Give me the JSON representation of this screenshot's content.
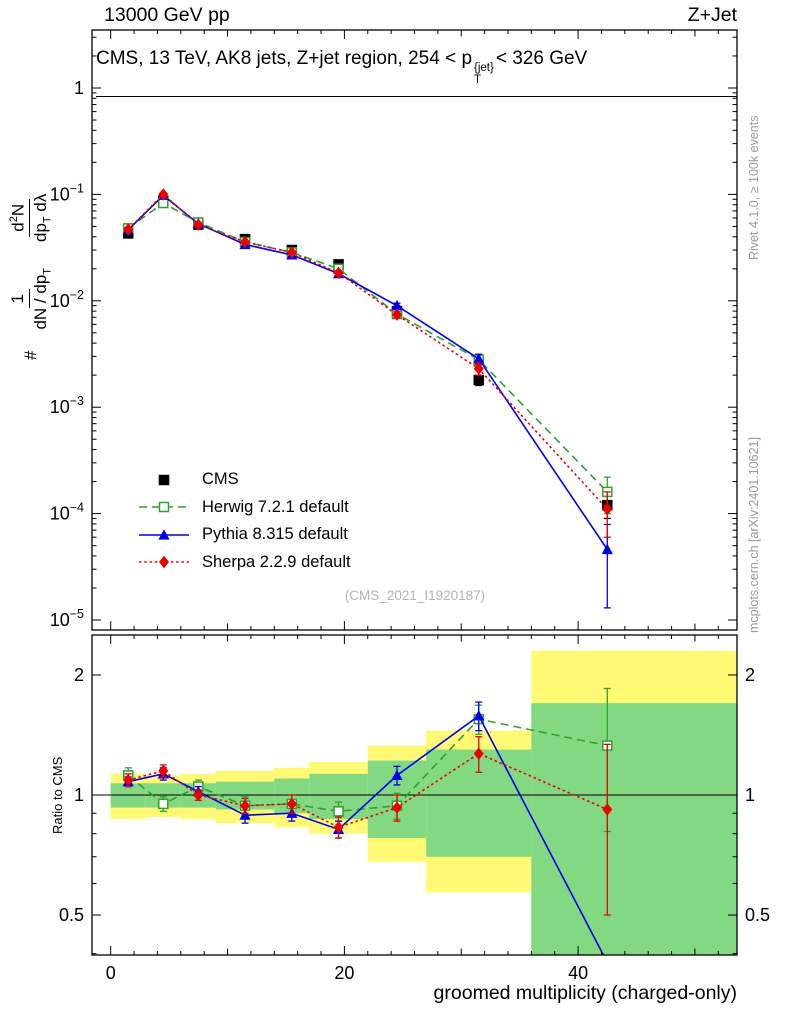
{
  "header": {
    "left": "13000 GeV pp",
    "right": "Z+Jet"
  },
  "title": {
    "full": "CMS, 13 TeV, AK8 jets, Z+jet region, 254 < pT{jet} < 326 GeV",
    "prefix": "CMS, 13 TeV, AK8 jets, Z+jet region, 254 < p",
    "sup": "{jet}",
    "sub": "T",
    "suffix": "< 326 GeV"
  },
  "ylabel": {
    "hash": "#",
    "f1_num": "1",
    "f1_den": "dN / dp",
    "f1_den_sub": "T",
    "f2_num": "d",
    "f2_num_sup": "2",
    "f2_num_tail": "N",
    "f2_den": "dp",
    "f2_den_sub": "T",
    "f2_den_tail": " dλ"
  },
  "ratio_label": "Ratio to CMS",
  "xlabel": "groomed multiplicity (charged-only)",
  "watermark": "(CMS_2021_I1920187)",
  "credits": {
    "right_top": "Rivet 4.1.0, ≥ 100k events",
    "right_bottom": "mcplots.cern.ch [arXiv:2401.10621]"
  },
  "chart_data": {
    "type": "line",
    "title": "CMS, 13 TeV, AK8 jets, Z+jet region, 254 < pT^{jet} < 326 GeV",
    "xlabel": "groomed multiplicity (charged-only)",
    "ylabel": "# 1/(dN/dpT) d2N/(dpT dλ)",
    "x_range": [
      -1.6,
      53.6
    ],
    "x_major_ticks": [
      0,
      20,
      40
    ],
    "x_minor_step": 2,
    "bin_edges": [
      0,
      3,
      6,
      9,
      14,
      17,
      22,
      27,
      36,
      49
    ],
    "x_centers": [
      1.5,
      4.5,
      7.5,
      11.5,
      15.5,
      19.5,
      24.5,
      31.5,
      42.5
    ],
    "y_main": {
      "scale": "log",
      "range": [
        8.1e-06,
        3.5
      ],
      "tick_decades": [
        0,
        -1,
        -2,
        -3,
        -4,
        -5
      ]
    },
    "y_ratio": {
      "scale": "log",
      "range": [
        0.397,
        2.52
      ],
      "major_ticks": [
        0.5,
        1,
        2
      ],
      "minor_ticks": [
        0.4,
        0.6,
        0.7,
        0.8,
        0.9
      ],
      "label": "Ratio to CMS"
    },
    "series": [
      {
        "id": "cms",
        "name": "CMS",
        "color": "#000000",
        "marker": "square",
        "fill": "filled",
        "line": "none",
        "y": [
          0.043,
          0.087,
          0.052,
          0.038,
          0.03,
          0.022,
          0.008,
          0.0018,
          0.00012
        ],
        "yerr": [
          0.004,
          0.006,
          0.004,
          0.003,
          0.0025,
          0.002,
          0.0009,
          0.0002,
          3e-05
        ],
        "ratio": null,
        "ratio_err": null
      },
      {
        "id": "herwig",
        "name": "Herwig 7.2.1 default",
        "color": "#2fa12f",
        "marker": "square",
        "fill": "open",
        "line": "dashed",
        "y": [
          0.048,
          0.083,
          0.0545,
          0.0357,
          0.0285,
          0.02,
          0.0075,
          0.0028,
          0.00016
        ],
        "yerr": [
          0.002,
          0.003,
          0.002,
          0.0015,
          0.0012,
          0.001,
          0.0005,
          0.0003,
          6e-05
        ],
        "ratio": [
          1.12,
          0.95,
          1.05,
          0.94,
          0.95,
          0.91,
          0.94,
          1.55,
          1.33
        ],
        "ratio_err": [
          0.05,
          0.04,
          0.04,
          0.05,
          0.05,
          0.05,
          0.07,
          0.13,
          0.52
        ]
      },
      {
        "id": "pythia",
        "name": "Pythia 8.315 default",
        "color": "#0000ee",
        "marker": "triangle",
        "fill": "filled",
        "line": "solid",
        "y": [
          0.0465,
          0.098,
          0.053,
          0.0338,
          0.027,
          0.018,
          0.009,
          0.00285,
          4.6e-05
        ],
        "yerr": [
          0.0015,
          0.003,
          0.0015,
          0.001,
          0.001,
          0.0008,
          0.0005,
          0.0003,
          3.3e-05
        ],
        "ratio": [
          1.08,
          1.13,
          1.02,
          0.89,
          0.9,
          0.82,
          1.12,
          1.58,
          0.38
        ],
        "ratio_err": [
          0.03,
          0.04,
          0.03,
          0.04,
          0.04,
          0.04,
          0.06,
          0.13,
          0.25
        ]
      },
      {
        "id": "sherpa",
        "name": "Sherpa 2.2.9 default",
        "color": "#ee0000",
        "marker": "diamond",
        "fill": "filled",
        "line": "dotted",
        "y": [
          0.047,
          0.1,
          0.052,
          0.0357,
          0.0285,
          0.0183,
          0.0074,
          0.0023,
          0.00011
        ],
        "yerr": [
          0.0015,
          0.003,
          0.0015,
          0.001,
          0.001,
          0.0008,
          0.0005,
          0.0003,
          5e-05
        ],
        "ratio": [
          1.09,
          1.15,
          1.0,
          0.94,
          0.95,
          0.83,
          0.93,
          1.27,
          0.92
        ],
        "ratio_err": [
          0.04,
          0.04,
          0.03,
          0.04,
          0.05,
          0.05,
          0.07,
          0.13,
          0.42
        ]
      }
    ],
    "ratio_bands": {
      "yellow_color": "#fff973",
      "green_color": "#82d982",
      "yellow": [
        [
          0.87,
          1.13
        ],
        [
          0.88,
          1.12
        ],
        [
          0.87,
          1.13
        ],
        [
          0.85,
          1.15
        ],
        [
          0.83,
          1.17
        ],
        [
          0.8,
          1.21
        ],
        [
          0.68,
          1.33
        ],
        [
          0.57,
          1.45
        ],
        [
          0.3,
          2.3
        ]
      ],
      "green": [
        [
          0.93,
          1.07
        ],
        [
          0.93,
          1.07
        ],
        [
          0.93,
          1.07
        ],
        [
          0.92,
          1.08
        ],
        [
          0.9,
          1.1
        ],
        [
          0.87,
          1.13
        ],
        [
          0.78,
          1.22
        ],
        [
          0.7,
          1.3
        ],
        [
          0.32,
          1.7
        ]
      ]
    }
  }
}
